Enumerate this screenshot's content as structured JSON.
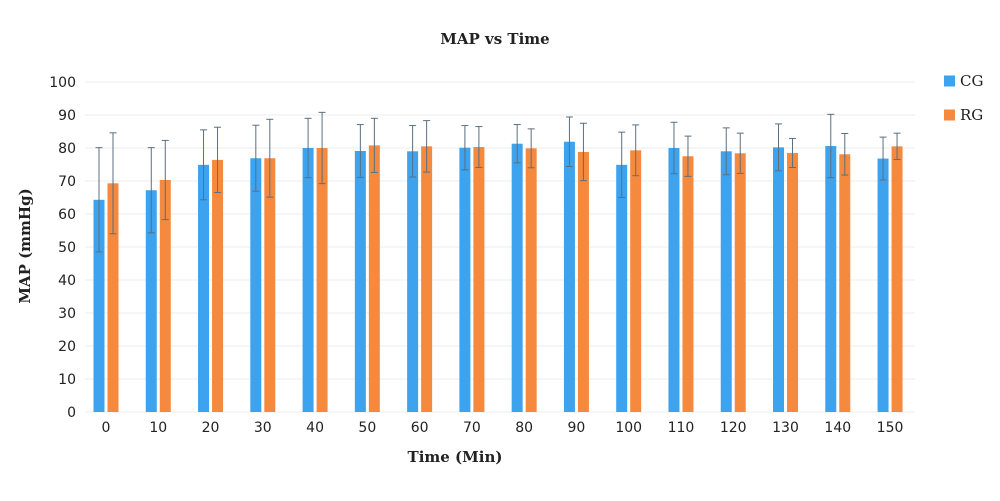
{
  "chart_data": {
    "type": "bar",
    "title": "MAP vs Time",
    "xlabel": "Time (Min)",
    "ylabel": "MAP (mmHg)",
    "ylim": [
      0,
      100
    ],
    "yticks": [
      0,
      10,
      20,
      30,
      40,
      50,
      60,
      70,
      80,
      90,
      100
    ],
    "grid": true,
    "legend_position": "right",
    "categories": [
      "0",
      "10",
      "20",
      "30",
      "40",
      "50",
      "60",
      "70",
      "80",
      "90",
      "100",
      "110",
      "120",
      "130",
      "140",
      "150"
    ],
    "series": [
      {
        "name": "CG",
        "color": "#3ea3ee",
        "values": [
          64.3,
          67.2,
          74.9,
          76.9,
          80.0,
          79.1,
          79.0,
          80.1,
          81.3,
          81.9,
          74.9,
          80.0,
          79.0,
          80.2,
          80.6,
          76.8
        ],
        "error": [
          15.8,
          12.9,
          10.6,
          10.0,
          9.0,
          8.0,
          7.8,
          6.7,
          5.8,
          7.5,
          9.9,
          7.8,
          7.1,
          7.1,
          9.6,
          6.5
        ]
      },
      {
        "name": "RG",
        "color": "#f58a3f",
        "values": [
          69.3,
          70.3,
          76.4,
          76.9,
          80.0,
          80.8,
          80.5,
          80.3,
          79.9,
          78.8,
          79.3,
          77.5,
          78.4,
          78.5,
          78.1,
          80.5
        ],
        "error": [
          15.3,
          12.0,
          9.9,
          11.8,
          10.8,
          8.2,
          7.8,
          6.2,
          5.9,
          8.7,
          7.7,
          6.1,
          6.1,
          4.4,
          6.3,
          4.0
        ]
      }
    ]
  }
}
